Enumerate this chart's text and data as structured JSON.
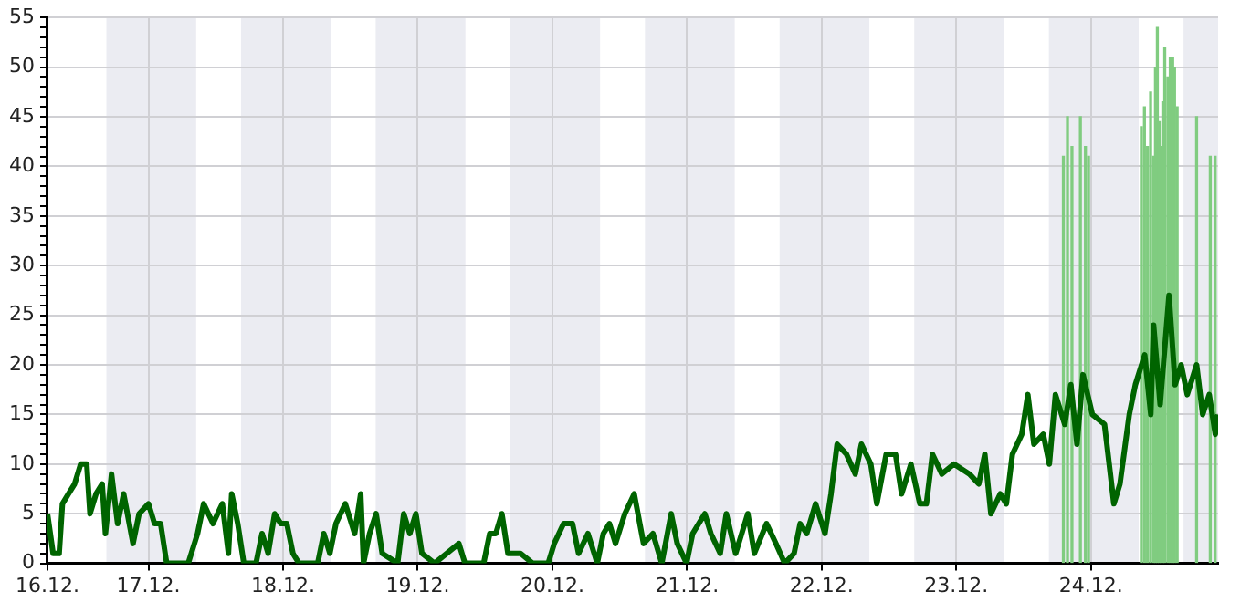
{
  "chart_data": {
    "type": "line",
    "xlim": [
      "--12-16T06:00",
      "--12-24T22:40"
    ],
    "xticks": [
      {
        "value": "--12-16T06:00",
        "label": "16.12."
      },
      {
        "value": "--12-17",
        "label": "17.12."
      },
      {
        "value": "--12-18",
        "label": "18.12."
      },
      {
        "value": "--12-19",
        "label": "19.12."
      },
      {
        "value": "--12-20",
        "label": "20.12."
      },
      {
        "value": "--12-21",
        "label": "21.12."
      },
      {
        "value": "--12-22",
        "label": "22.12."
      },
      {
        "value": "--12-23",
        "label": "23.12."
      },
      {
        "value": "--12-24",
        "label": "24.12."
      }
    ],
    "ylim": [
      0,
      55
    ],
    "yticks": [
      0,
      {
        "value": 1,
        "label": null
      },
      {
        "value": 2,
        "label": null
      },
      {
        "value": 3,
        "label": null
      },
      {
        "value": 4,
        "label": null
      },
      5,
      {
        "value": 6,
        "label": null
      },
      {
        "value": 7,
        "label": null
      },
      {
        "value": 8,
        "label": null
      },
      {
        "value": 9,
        "label": null
      },
      10,
      {
        "value": 11,
        "label": null
      },
      {
        "value": 12,
        "label": null
      },
      {
        "value": 13,
        "label": null
      },
      {
        "value": 14,
        "label": null
      },
      15,
      {
        "value": 16,
        "label": null
      },
      {
        "value": 17,
        "label": null
      },
      {
        "value": 18,
        "label": null
      },
      {
        "value": 19,
        "label": null
      },
      20,
      {
        "value": 21,
        "label": null
      },
      {
        "value": 22,
        "label": null
      },
      {
        "value": 23,
        "label": null
      },
      {
        "value": 24,
        "label": null
      },
      25,
      {
        "value": 26,
        "label": null
      },
      {
        "value": 27,
        "label": null
      },
      {
        "value": 28,
        "label": null
      },
      {
        "value": 29,
        "label": null
      },
      30,
      {
        "value": 31,
        "label": null
      },
      {
        "value": 32,
        "label": null
      },
      {
        "value": 33,
        "label": null
      },
      {
        "value": 34,
        "label": null
      },
      35,
      {
        "value": 36,
        "label": null
      },
      {
        "value": 37,
        "label": null
      },
      {
        "value": 38,
        "label": null
      },
      {
        "value": 39,
        "label": null
      },
      40,
      {
        "value": 41,
        "label": null
      },
      {
        "value": 42,
        "label": null
      },
      {
        "value": 43,
        "label": null
      },
      {
        "value": 44,
        "label": null
      },
      45,
      {
        "value": 46,
        "label": null
      },
      {
        "value": 47,
        "label": null
      },
      {
        "value": 48,
        "label": null
      },
      {
        "value": 49,
        "label": null
      },
      50,
      {
        "value": 51,
        "label": null
      },
      {
        "value": 52,
        "label": null
      },
      {
        "value": 53,
        "label": null
      },
      {
        "value": 54,
        "label": null
      },
      55
    ],
    "grid": true,
    "bands": [
      {
        "axis": "x",
        "from": "--12-16T16:30",
        "to": "--12-17T08:30",
        "color": "#ebecf2"
      },
      {
        "axis": "x",
        "from": "--12-17T16:30",
        "to": "--12-18T08:30",
        "color": "#ebecf2"
      },
      {
        "axis": "x",
        "from": "--12-18T16:30",
        "to": "--12-19T08:30",
        "color": "#ebecf2"
      },
      {
        "axis": "x",
        "from": "--12-19T16:30",
        "to": "--12-20T08:30",
        "color": "#ebecf2"
      },
      {
        "axis": "x",
        "from": "--12-20T16:30",
        "to": "--12-21T08:30",
        "color": "#ebecf2"
      },
      {
        "axis": "x",
        "from": "--12-21T16:30",
        "to": "--12-22T08:30",
        "color": "#ebecf2"
      },
      {
        "axis": "x",
        "from": "--12-22T16:30",
        "to": "--12-23T08:30",
        "color": "#ebecf2"
      },
      {
        "axis": "x",
        "from": "--12-23T16:30",
        "to": "--12-24T08:30",
        "color": "#ebecf2"
      },
      {
        "axis": "x",
        "from": "--12-24T16:30",
        "to": "--12-24T22:40",
        "color": "#ebecf2"
      }
    ],
    "series": [
      {
        "type": "bar",
        "color": "#80cc80",
        "x": [
          "--12-23T19:05",
          "--12-23T19:49",
          "--12-23T20:37",
          "--12-23T22:07",
          "--12-23T23:01",
          "--12-23T23:34",
          "--12-24T08:59",
          "--12-24T09:32",
          "--12-24T10:05",
          "--12-24T10:38",
          "--12-24T11:11",
          "--12-24T11:30",
          "--12-24T11:50",
          "--12-24T12:10",
          "--12-24T12:30",
          "--12-24T12:49",
          "--12-24T13:09",
          "--12-24T13:42",
          "--12-24T14:08",
          "--12-24T14:34",
          "--12-24T14:54",
          "--12-24T15:22",
          "--12-24T18:50",
          "--12-24T21:16",
          "--12-24T22:08"
        ],
        "values": [
          41,
          45,
          42,
          45,
          42,
          41,
          44,
          46,
          42,
          47.5,
          41,
          50,
          54,
          44.5,
          42,
          46.5,
          52,
          49,
          51,
          51,
          50,
          46,
          45,
          41,
          41
        ]
      },
      {
        "color": "#006400",
        "x": [
          "--12-16T06:00",
          "--12-16T07:00",
          "--12-16T08:05",
          "--12-16T08:40",
          "--12-16T09:45",
          "--12-16T10:50",
          "--12-16T11:55",
          "--12-16T13:00",
          "--12-16T13:35",
          "--12-16T14:40",
          "--12-16T15:45",
          "--12-16T16:20",
          "--12-16T17:25",
          "--12-16T18:30",
          "--12-16T19:35",
          "--12-16T21:15",
          "--12-16T22:20",
          "--12-17T00:00",
          "--12-17T01:05",
          "--12-17T02:10",
          "--12-17T03:15",
          "--12-17T04:55",
          "--12-17T07:05",
          "--12-17T08:45",
          "--12-17T09:50",
          "--12-17T11:30",
          "--12-17T13:10",
          "--12-17T14:15",
          "--12-17T14:50",
          "--12-17T15:55",
          "--12-17T17:00",
          "--12-17T19:10",
          "--12-17T20:15",
          "--12-17T21:20",
          "--12-17T22:30",
          "--12-17T23:35",
          "--12-18T00:40",
          "--12-18T01:45",
          "--12-18T02:50",
          "--12-18T06:10",
          "--12-18T07:15",
          "--12-18T08:20",
          "--12-18T09:25",
          "--12-18T11:05",
          "--12-18T12:45",
          "--12-18T13:50",
          "--12-18T14:20",
          "--12-18T15:25",
          "--12-18T16:35",
          "--12-18T17:40",
          "--12-18T20:25",
          "--12-18T21:30",
          "--12-18T22:35",
          "--12-18T23:40",
          "--12-19T00:45",
          "--12-19T03:00",
          "--12-19T07:20",
          "--12-19T08:25",
          "--12-19T11:45",
          "--12-19T12:50",
          "--12-19T13:55",
          "--12-19T15:00",
          "--12-19T16:05",
          "--12-19T18:20",
          "--12-19T20:30",
          "--12-19T23:15",
          "--12-20T00:20",
          "--12-20T02:00",
          "--12-20T03:35",
          "--12-20T04:40",
          "--12-20T06:20",
          "--12-20T08:00",
          "--12-20T09:05",
          "--12-20T10:10",
          "--12-20T11:15",
          "--12-20T12:55",
          "--12-20T14:35",
          "--12-20T16:15",
          "--12-20T17:55",
          "--12-20T19:30",
          "--12-20T21:10",
          "--12-20T22:15",
          "--12-20T23:55",
          "--12-21T01:00",
          "--12-21T03:10",
          "--12-21T04:15",
          "--12-21T05:55",
          "--12-21T07:00",
          "--12-21T08:40",
          "--12-21T10:50",
          "--12-21T12:00",
          "--12-21T14:10",
          "--12-21T15:50",
          "--12-21T17:25",
          "--12-21T19:05",
          "--12-21T20:10",
          "--12-21T21:20",
          "--12-21T22:55",
          "--12-22T00:35",
          "--12-22T01:40",
          "--12-22T02:45",
          "--12-22T04:25",
          "--12-22T06:00",
          "--12-22T07:05",
          "--12-22T08:45",
          "--12-22T09:50",
          "--12-22T11:30",
          "--12-22T13:10",
          "--12-22T14:15",
          "--12-22T15:55",
          "--12-22T17:30",
          "--12-22T18:40",
          "--12-22T19:45",
          "--12-22T21:25",
          "--12-22T23:35",
          "--12-23T02:20",
          "--12-23T04:00",
          "--12-23T05:05",
          "--12-23T06:10",
          "--12-23T07:50",
          "--12-23T08:55",
          "--12-23T10:00",
          "--12-23T11:40",
          "--12-23T12:45",
          "--12-23T13:50",
          "--12-23T15:30",
          "--12-23T16:35",
          "--12-23T17:40",
          "--12-23T19:20",
          "--12-23T20:25",
          "--12-23T21:30",
          "--12-23T22:35",
          "--12-24T00:15",
          "--12-24T02:25",
          "--12-24T04:05",
          "--12-24T05:10",
          "--12-24T06:50",
          "--12-24T07:55",
          "--12-24T09:35",
          "--12-24T10:40",
          "--12-24T11:10",
          "--12-24T12:20",
          "--12-24T13:55",
          "--12-24T15:00",
          "--12-24T16:05",
          "--12-24T17:10",
          "--12-24T18:50",
          "--12-24T19:55",
          "--12-24T21:05",
          "--12-24T22:10",
          "--12-24T22:40"
        ],
        "values": [
          5,
          1,
          1,
          6,
          7,
          8,
          10,
          10,
          5,
          7,
          8,
          3,
          9,
          4,
          7,
          2,
          5,
          6,
          4,
          4,
          0,
          0,
          0,
          3,
          6,
          4,
          6,
          1,
          7,
          4,
          0,
          0,
          3,
          1,
          5,
          4,
          4,
          1,
          0,
          0,
          3,
          1,
          4,
          6,
          3,
          7,
          0,
          3,
          5,
          1,
          0,
          5,
          3,
          5,
          1,
          0,
          2,
          0,
          0,
          3,
          3,
          5,
          1,
          1,
          0,
          0,
          2,
          4,
          4,
          1,
          3,
          0,
          3,
          4,
          2,
          5,
          7,
          2,
          3,
          0,
          5,
          2,
          0,
          3,
          5,
          3,
          1,
          5,
          1,
          5,
          1,
          4,
          2,
          0,
          1,
          4,
          3,
          6,
          3,
          7,
          12,
          11,
          9,
          12,
          10,
          6,
          11,
          11,
          7,
          10,
          6,
          6,
          11,
          9,
          10,
          9,
          8,
          11,
          5,
          7,
          6,
          11,
          13,
          17,
          12,
          13,
          10,
          17,
          14,
          18,
          12,
          19,
          15,
          14,
          6,
          8,
          15,
          18,
          21,
          15,
          24,
          16,
          27,
          18,
          20,
          17,
          20,
          15,
          17,
          13,
          15
        ]
      }
    ]
  }
}
